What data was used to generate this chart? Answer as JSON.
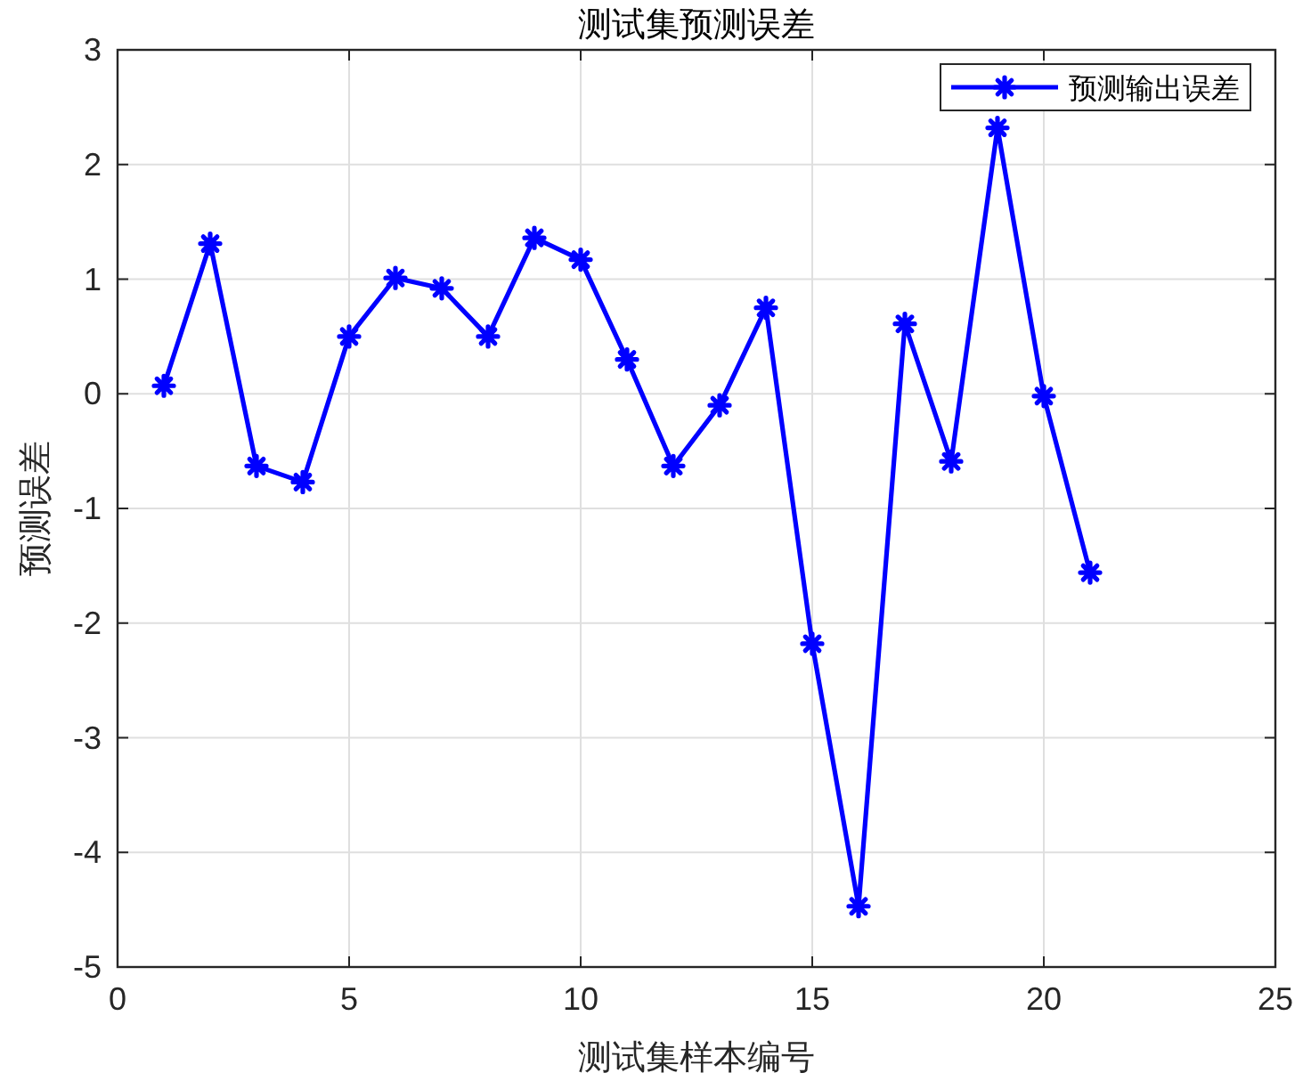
{
  "chart_data": {
    "type": "line",
    "title": "测试集预测误差",
    "xlabel": "测试集样本编号",
    "ylabel": "预测误差",
    "x": [
      1,
      2,
      3,
      4,
      5,
      6,
      7,
      8,
      9,
      10,
      11,
      12,
      13,
      14,
      15,
      16,
      17,
      18,
      19,
      20,
      21
    ],
    "series": [
      {
        "name": "预测输出误差",
        "color": "#0000ff",
        "values": [
          0.07,
          1.31,
          -0.63,
          -0.77,
          0.5,
          1.01,
          0.92,
          0.5,
          1.36,
          1.17,
          0.3,
          -0.63,
          -0.1,
          0.75,
          -2.18,
          -4.47,
          0.61,
          -0.59,
          2.32,
          -0.02,
          -1.56
        ]
      }
    ],
    "xlim": [
      0,
      25
    ],
    "xticks": [
      0,
      5,
      10,
      15,
      20,
      25
    ],
    "ylim": [
      -5,
      3
    ],
    "yticks": [
      -5,
      -4,
      -3,
      -2,
      -1,
      0,
      1,
      2,
      3
    ],
    "grid": true,
    "legend": "top right",
    "marker": "cross",
    "line_style": "solid"
  }
}
